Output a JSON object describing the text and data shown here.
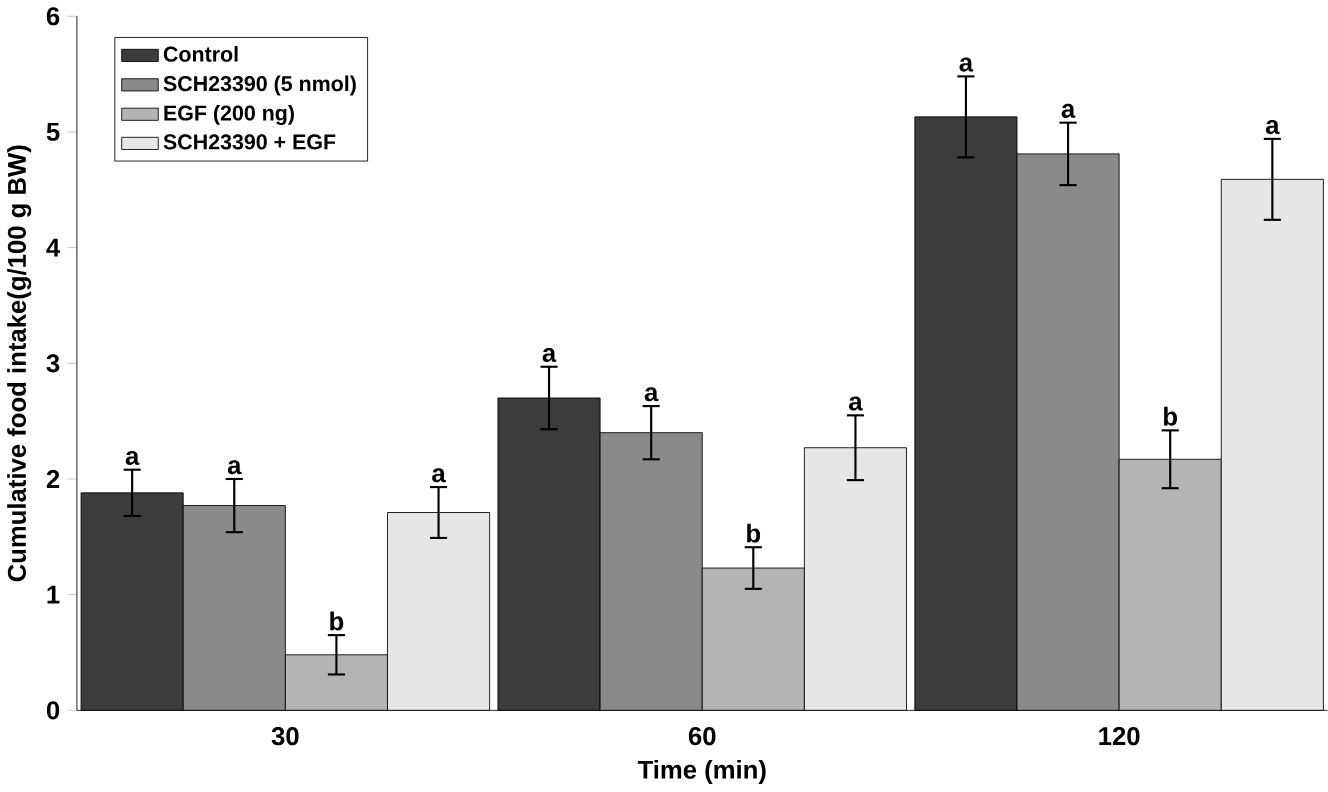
{
  "chart_data": {
    "type": "bar",
    "xlabel": "Time (min)",
    "ylabel": "Cumulative food intake(g/100 g BW)",
    "categories": [
      "30",
      "60",
      "120"
    ],
    "ylim": [
      0,
      6
    ],
    "yticks": [
      0,
      1,
      2,
      3,
      4,
      5,
      6
    ],
    "legend": "top left",
    "grid": false,
    "series": [
      {
        "name": "Control",
        "color": "#3c3c3c",
        "values": [
          1.88,
          2.7,
          5.13
        ],
        "errors": [
          0.2,
          0.27,
          0.35
        ],
        "value_labels": [
          "a",
          "a",
          "a"
        ]
      },
      {
        "name": "SCH23390 (5 nmol)",
        "color": "#8a8a8a",
        "values": [
          1.77,
          2.4,
          4.81
        ],
        "errors": [
          0.23,
          0.23,
          0.27
        ],
        "value_labels": [
          "a",
          "a",
          "a"
        ]
      },
      {
        "name": "EGF (200 ng)",
        "color": "#b4b4b4",
        "values": [
          0.48,
          1.23,
          2.17
        ],
        "errors": [
          0.17,
          0.18,
          0.25
        ],
        "value_labels": [
          "b",
          "b",
          "b"
        ]
      },
      {
        "name": "SCH23390 + EGF",
        "color": "#e6e6e6",
        "values": [
          1.71,
          2.27,
          4.59
        ],
        "errors": [
          0.22,
          0.28,
          0.35
        ],
        "value_labels": [
          "a",
          "a",
          "a"
        ]
      }
    ]
  }
}
